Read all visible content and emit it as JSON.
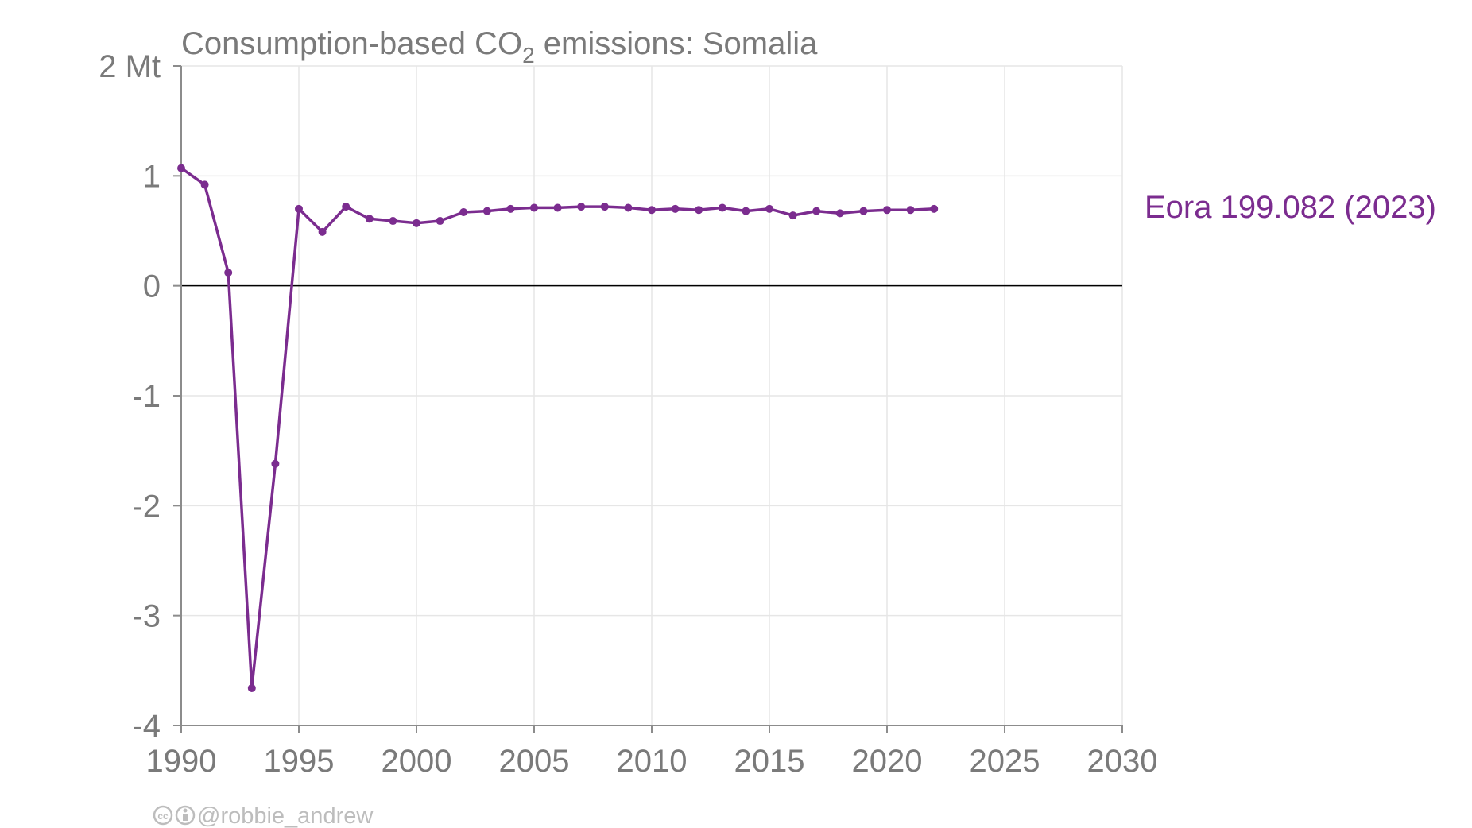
{
  "chart_data": {
    "type": "line",
    "title": {
      "before": "Consumption-based CO",
      "subscript": "2",
      "after": " emissions: Somalia"
    },
    "ylabel_unit": "Mt",
    "xlim": [
      1990,
      2030
    ],
    "ylim": [
      -4,
      2
    ],
    "x_ticks": [
      1990,
      1995,
      2000,
      2005,
      2010,
      2015,
      2020,
      2025,
      2030
    ],
    "y_ticks": [
      {
        "value": 2,
        "label": "2 Mt"
      },
      {
        "value": 1,
        "label": "1"
      },
      {
        "value": 0,
        "label": "0"
      },
      {
        "value": -1,
        "label": "-1"
      },
      {
        "value": -2,
        "label": "-2"
      },
      {
        "value": -3,
        "label": "-3"
      },
      {
        "value": -4,
        "label": "-4"
      }
    ],
    "grid": true,
    "zero_line": true,
    "series": [
      {
        "name": "Eora",
        "label": "Eora 199.082 (2023)",
        "color": "#7b2c8f",
        "x": [
          1990,
          1991,
          1992,
          1993,
          1994,
          1995,
          1996,
          1997,
          1998,
          1999,
          2000,
          2001,
          2002,
          2003,
          2004,
          2005,
          2006,
          2007,
          2008,
          2009,
          2010,
          2011,
          2012,
          2013,
          2014,
          2015,
          2016,
          2017,
          2018,
          2019,
          2020,
          2021,
          2022
        ],
        "y": [
          1.07,
          0.92,
          0.12,
          -3.66,
          -1.62,
          0.7,
          0.49,
          0.72,
          0.61,
          0.59,
          0.57,
          0.59,
          0.67,
          0.68,
          0.7,
          0.71,
          0.71,
          0.72,
          0.72,
          0.71,
          0.69,
          0.7,
          0.69,
          0.71,
          0.68,
          0.7,
          0.64,
          0.68,
          0.66,
          0.68,
          0.69,
          0.69,
          0.7
        ]
      }
    ],
    "credit": "@robbie_andrew"
  },
  "colors": {
    "series": "#7b2c8f",
    "text": "#7a7a7a",
    "grid": "#e6e6e6",
    "axis": "#8c8c8c",
    "zero_line": "#000000",
    "credit": "#bdbdbd"
  },
  "icons": [
    "creative-commons-icon",
    "attribution-icon"
  ]
}
